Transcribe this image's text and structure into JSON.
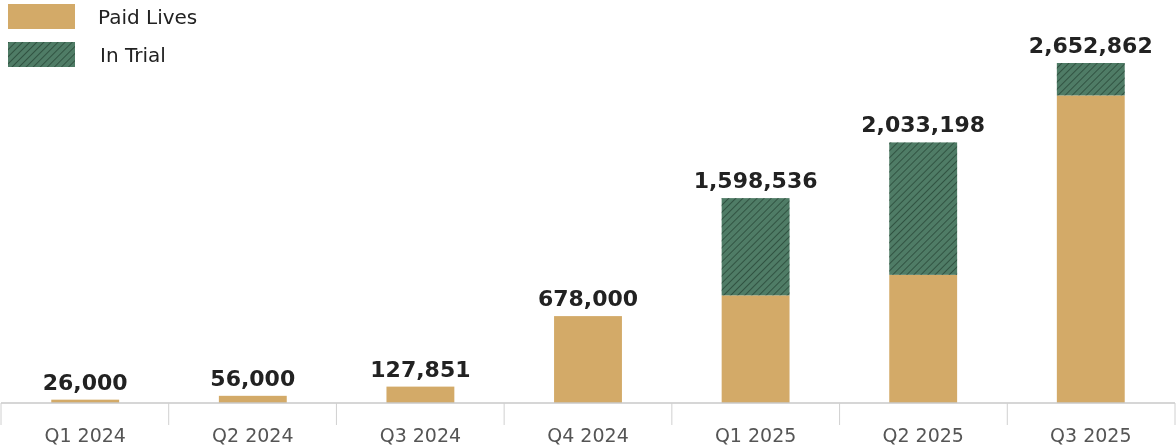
{
  "chart_data": {
    "type": "bar",
    "stacked": true,
    "legend": "top left",
    "categories": [
      "Q1 2024",
      "Q2 2024",
      "Q3 2024",
      "Q4 2024",
      "Q1 2025",
      "Q2 2025",
      "Q3 2025"
    ],
    "series": [
      {
        "name": "Paid Lives",
        "color": "#d3aa68",
        "values": [
          26000,
          56000,
          127851,
          678000,
          840000,
          1000000,
          2400000
        ],
        "value_labels": [
          "26,000",
          "56,000",
          "127,851",
          "678,000",
          null,
          null,
          null
        ]
      },
      {
        "name": "In Trial",
        "color": "#4f7c66",
        "values": [
          null,
          null,
          null,
          null,
          758536,
          1033198,
          252862
        ]
      }
    ],
    "totals": [
      null,
      null,
      null,
      null,
      "1,598,536",
      "2,033,198",
      "2,652,862"
    ]
  }
}
